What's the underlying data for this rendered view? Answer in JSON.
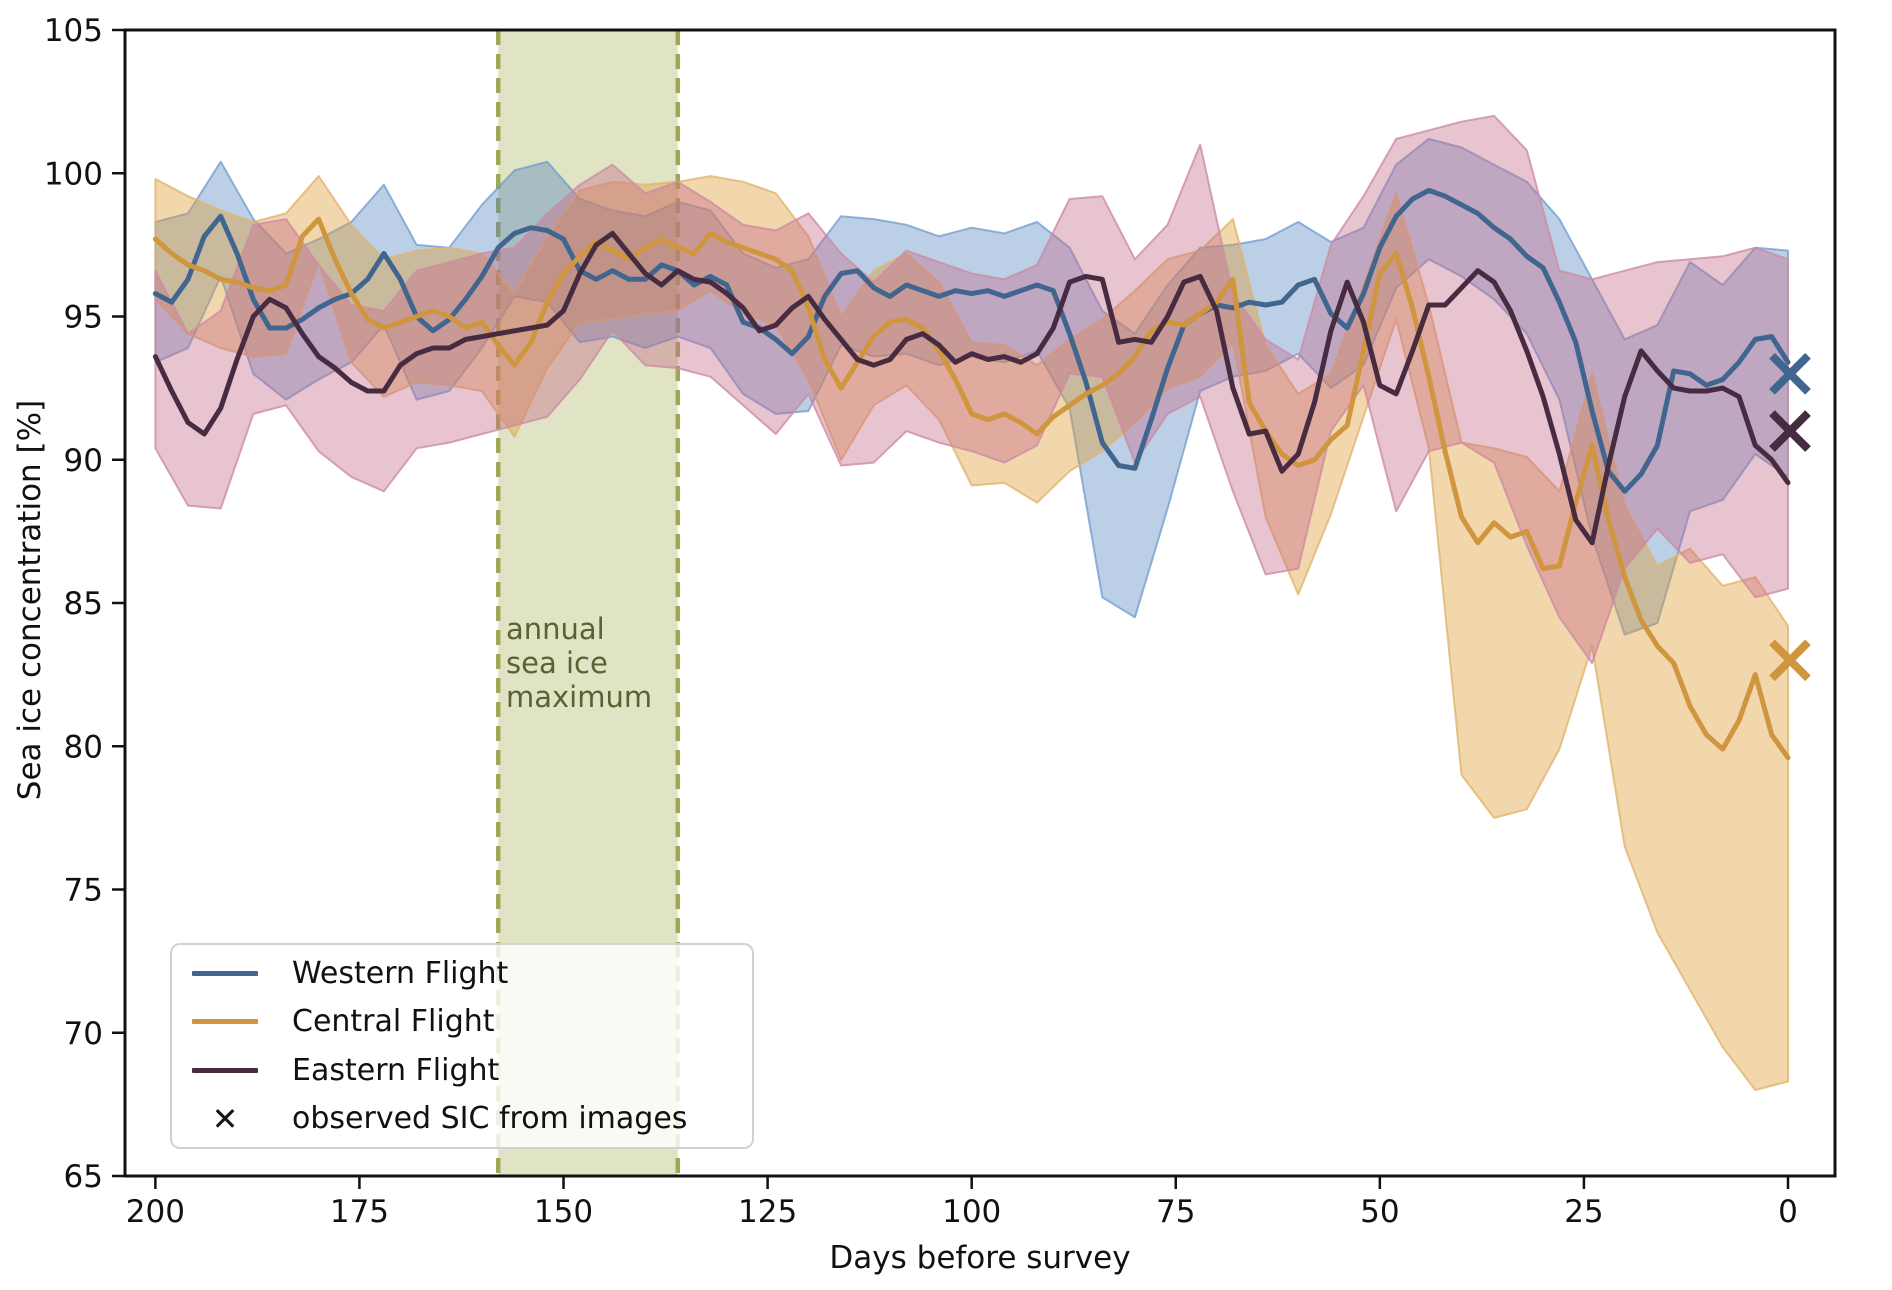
{
  "chart_data": {
    "type": "line",
    "title": "",
    "xlabel": "Days before survey",
    "ylabel": "Sea ice concentration [%]",
    "xlim": [
      204,
      -6
    ],
    "ylim": [
      65,
      105
    ],
    "x_ticks": [
      200,
      175,
      150,
      125,
      100,
      75,
      50,
      25,
      0
    ],
    "y_ticks": [
      105,
      100,
      95,
      90,
      85,
      80,
      75,
      70,
      65
    ],
    "grid": false,
    "legend_position": "lower left",
    "x_start": 200,
    "x_step": -2,
    "band_x_step": -4,
    "highlight_span": {
      "label": "annual sea ice maximum",
      "label_lines": [
        "annual",
        "sea ice",
        "maximum"
      ],
      "from": 158,
      "to": 136,
      "fill": "rgba(205,210,160,0.62)",
      "edge": "#A2A758",
      "text_color": "#5C6134"
    },
    "observed_marker_x": 0,
    "series": [
      {
        "name": "Western Flight",
        "color": "#40658E",
        "band_color": "rgba(77,129,190,0.38)",
        "band_edge": "rgba(110,155,205,0.75)",
        "observed_sic": 93.0,
        "values": [
          95.8,
          95.5,
          96.3,
          97.8,
          98.5,
          97.2,
          95.6,
          94.6,
          94.6,
          94.9,
          95.3,
          95.6,
          95.8,
          96.3,
          97.2,
          96.3,
          95.0,
          94.5,
          94.9,
          95.6,
          96.4,
          97.4,
          97.9,
          98.1,
          98.0,
          97.7,
          96.6,
          96.3,
          96.6,
          96.3,
          96.3,
          96.8,
          96.6,
          96.1,
          96.4,
          96.1,
          94.8,
          94.6,
          94.2,
          93.7,
          94.3,
          95.7,
          96.5,
          96.6,
          96.0,
          95.7,
          96.1,
          95.9,
          95.7,
          95.9,
          95.8,
          95.9,
          95.7,
          95.9,
          96.1,
          95.9,
          94.4,
          92.7,
          90.6,
          89.8,
          89.7,
          91.4,
          93.2,
          94.7,
          95.1,
          95.4,
          95.3,
          95.5,
          95.4,
          95.5,
          96.1,
          96.3,
          95.1,
          94.6,
          95.8,
          97.4,
          98.5,
          99.1,
          99.4,
          99.2,
          98.9,
          98.6,
          98.1,
          97.7,
          97.1,
          96.7,
          95.5,
          94.1,
          91.7,
          89.6,
          88.9,
          89.5,
          90.5,
          93.1,
          93.0,
          92.6,
          92.8,
          93.4,
          94.2,
          94.3,
          93.4
        ],
        "band_upper": [
          98.3,
          98.6,
          100.4,
          98.4,
          97.2,
          97.7,
          98.3,
          99.6,
          97.5,
          97.4,
          98.9,
          100.1,
          100.4,
          99.1,
          98.7,
          98.5,
          99.0,
          98.7,
          97.2,
          96.7,
          97.0,
          98.5,
          98.4,
          98.2,
          97.8,
          98.1,
          97.9,
          98.3,
          97.4,
          95.2,
          94.4,
          96.1,
          97.4,
          97.5,
          97.7,
          98.3,
          97.6,
          98.1,
          100.3,
          101.2,
          100.9,
          100.3,
          99.7,
          98.4,
          96.3,
          94.2,
          94.7,
          96.9,
          96.1,
          97.4,
          97.3
        ],
        "band_lower": [
          93.4,
          93.9,
          96.4,
          93.0,
          92.1,
          92.8,
          93.4,
          94.7,
          92.1,
          92.4,
          93.9,
          95.7,
          95.5,
          94.1,
          94.3,
          93.9,
          94.3,
          93.9,
          92.3,
          91.6,
          91.7,
          94.0,
          93.6,
          93.7,
          93.3,
          93.6,
          93.4,
          93.8,
          91.8,
          85.2,
          84.5,
          88.3,
          92.4,
          92.9,
          93.1,
          93.7,
          92.5,
          93.3,
          96.0,
          97.0,
          96.4,
          95.6,
          94.4,
          92.1,
          87.3,
          83.9,
          84.3,
          88.2,
          88.6,
          90.2,
          89.4
        ]
      },
      {
        "name": "Central Flight",
        "color": "#D0953F",
        "band_color": "rgba(223,158,58,0.42)",
        "band_edge": "rgba(225,180,110,0.8)",
        "observed_sic": 83.0,
        "values": [
          97.7,
          97.2,
          96.8,
          96.6,
          96.3,
          96.2,
          96.0,
          95.9,
          96.1,
          97.8,
          98.4,
          97.0,
          95.8,
          94.9,
          94.6,
          94.8,
          95.0,
          95.2,
          95.0,
          94.6,
          94.8,
          94.0,
          93.3,
          94.1,
          95.5,
          96.5,
          97.1,
          97.6,
          97.3,
          97.0,
          97.4,
          97.7,
          97.4,
          97.2,
          97.9,
          97.6,
          97.4,
          97.2,
          97.0,
          96.6,
          95.3,
          93.5,
          92.5,
          93.4,
          94.3,
          94.8,
          94.9,
          94.6,
          93.8,
          92.8,
          91.6,
          91.4,
          91.6,
          91.3,
          90.9,
          91.5,
          91.9,
          92.3,
          92.6,
          93.0,
          93.6,
          94.5,
          94.8,
          94.7,
          95.1,
          95.5,
          96.3,
          92.0,
          91.0,
          90.2,
          89.8,
          90.0,
          90.7,
          91.2,
          93.8,
          96.5,
          97.2,
          95.3,
          92.9,
          90.3,
          88.0,
          87.1,
          87.8,
          87.3,
          87.5,
          86.2,
          86.3,
          88.5,
          90.5,
          87.9,
          85.9,
          84.4,
          83.5,
          82.9,
          81.4,
          80.4,
          79.9,
          80.9,
          82.5,
          80.4,
          79.6
        ],
        "band_upper": [
          99.8,
          99.2,
          98.7,
          98.3,
          98.6,
          99.9,
          98.2,
          97.0,
          97.3,
          97.4,
          97.2,
          95.8,
          97.8,
          99.4,
          99.7,
          99.6,
          99.7,
          99.9,
          99.7,
          99.3,
          97.8,
          95.0,
          96.6,
          97.2,
          96.2,
          94.1,
          94.0,
          93.3,
          94.2,
          94.9,
          95.9,
          97.0,
          97.3,
          98.4,
          94.0,
          92.3,
          93.0,
          96.1,
          99.3,
          95.4,
          90.6,
          90.4,
          90.1,
          88.9,
          93.0,
          88.4,
          86.3,
          86.9,
          85.6,
          85.9,
          84.2
        ],
        "band_lower": [
          95.6,
          94.4,
          93.9,
          93.6,
          93.7,
          96.9,
          93.4,
          92.2,
          92.7,
          92.6,
          92.4,
          90.8,
          93.2,
          94.8,
          94.9,
          95.1,
          95.2,
          95.9,
          95.1,
          94.7,
          92.8,
          90.0,
          91.9,
          92.6,
          91.4,
          89.1,
          89.2,
          88.5,
          89.6,
          90.3,
          91.3,
          92.5,
          92.9,
          94.1,
          88.0,
          85.3,
          88.1,
          91.5,
          94.9,
          90.4,
          79.0,
          77.5,
          77.8,
          79.9,
          83.5,
          76.5,
          73.5,
          71.5,
          69.5,
          68.0,
          68.3
        ]
      },
      {
        "name": "Eastern Flight",
        "color": "#472B40",
        "band_color": "rgba(197,105,137,0.40)",
        "band_edge": "rgba(205,140,165,0.8)",
        "observed_sic": 91.0,
        "values": [
          93.6,
          92.4,
          91.3,
          90.9,
          91.8,
          93.5,
          95.0,
          95.6,
          95.3,
          94.4,
          93.6,
          93.2,
          92.7,
          92.4,
          92.4,
          93.3,
          93.7,
          93.9,
          93.9,
          94.2,
          94.3,
          94.4,
          94.5,
          94.6,
          94.7,
          95.2,
          96.5,
          97.5,
          97.9,
          97.2,
          96.5,
          96.1,
          96.6,
          96.3,
          96.2,
          95.8,
          95.3,
          94.5,
          94.7,
          95.3,
          95.7,
          94.9,
          94.2,
          93.5,
          93.3,
          93.5,
          94.2,
          94.4,
          94.0,
          93.4,
          93.7,
          93.5,
          93.6,
          93.4,
          93.7,
          94.6,
          96.2,
          96.4,
          96.3,
          94.1,
          94.2,
          94.1,
          95.0,
          96.2,
          96.4,
          95.2,
          92.5,
          90.9,
          91.0,
          89.6,
          90.2,
          92.0,
          94.5,
          96.2,
          94.8,
          92.6,
          92.3,
          93.8,
          95.4,
          95.4,
          96.0,
          96.6,
          96.2,
          95.2,
          93.8,
          92.2,
          90.2,
          87.9,
          87.1,
          89.8,
          92.2,
          93.8,
          93.1,
          92.5,
          92.4,
          92.4,
          92.5,
          92.2,
          90.5,
          90.0,
          89.2
        ],
        "band_upper": [
          96.6,
          94.4,
          95.2,
          98.2,
          98.4,
          96.8,
          95.4,
          95.2,
          96.6,
          96.9,
          97.2,
          97.4,
          98.6,
          99.6,
          100.3,
          99.3,
          99.7,
          99.0,
          98.2,
          98.0,
          98.6,
          97.2,
          96.2,
          97.3,
          96.9,
          96.5,
          96.3,
          96.8,
          99.1,
          99.2,
          97.0,
          98.2,
          101.0,
          95.8,
          94.2,
          93.5,
          97.5,
          99.2,
          101.2,
          101.5,
          101.8,
          102.0,
          100.8,
          96.6,
          96.3,
          96.6,
          96.9,
          97.0,
          97.1,
          97.4,
          97.0
        ],
        "band_lower": [
          90.4,
          88.4,
          88.3,
          91.6,
          91.9,
          90.3,
          89.4,
          88.9,
          90.4,
          90.6,
          90.9,
          91.2,
          91.5,
          92.8,
          94.5,
          93.3,
          93.2,
          92.9,
          91.9,
          90.9,
          92.3,
          89.8,
          89.9,
          91.0,
          90.6,
          90.3,
          89.9,
          90.5,
          93.0,
          92.9,
          89.9,
          91.6,
          92.2,
          88.9,
          86.0,
          86.2,
          91.0,
          92.6,
          88.2,
          90.3,
          90.6,
          89.9,
          87.0,
          84.5,
          82.9,
          86.2,
          87.6,
          86.4,
          86.7,
          85.2,
          85.5
        ]
      }
    ]
  },
  "legend": {
    "items": [
      {
        "label": "Western Flight",
        "type": "line",
        "color": "#40658E"
      },
      {
        "label": "Central Flight",
        "type": "line",
        "color": "#D0953F"
      },
      {
        "label": "Eastern Flight",
        "type": "line",
        "color": "#472B40"
      },
      {
        "label": "observed SIC from images",
        "type": "x-marker",
        "glyph": "✕",
        "color": "#151515"
      }
    ]
  },
  "style_colors": {
    "axis": "#111111",
    "tick_label": "#111111"
  }
}
